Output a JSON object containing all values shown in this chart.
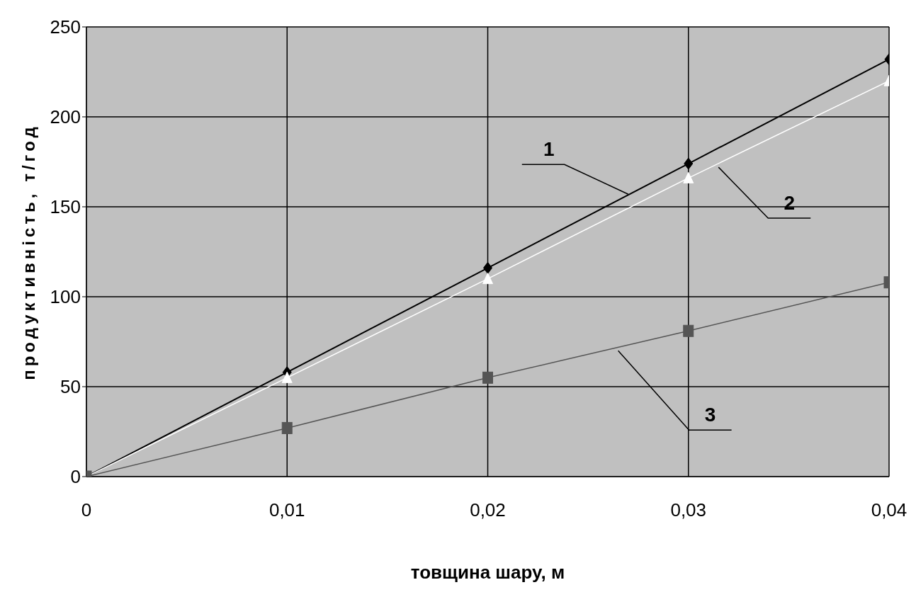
{
  "chart_data": {
    "type": "line",
    "xlabel": "товщина шару, м",
    "ylabel": "продуктивність, т/год",
    "x": [
      0,
      0.01,
      0.02,
      0.03,
      0.04
    ],
    "series": [
      {
        "color": "#000000",
        "marker": "diamond",
        "values": [
          0,
          58,
          116,
          174,
          232
        ]
      },
      {
        "color": "#ffffff",
        "marker": "triangle",
        "values": [
          0,
          55,
          110,
          166,
          220
        ]
      },
      {
        "color": "#555555",
        "marker": "square",
        "values": [
          0,
          27,
          55,
          81,
          108
        ]
      }
    ],
    "xlim": [
      0,
      0.04
    ],
    "xticks": [
      {
        "value": 0,
        "label": "0"
      },
      {
        "value": 0.01,
        "label": "0,01"
      },
      {
        "value": 0.02,
        "label": "0,02"
      },
      {
        "value": 0.03,
        "label": "0,03"
      },
      {
        "value": 0.04,
        "label": "0,04"
      }
    ],
    "ylim": [
      0,
      250
    ],
    "yticks": [
      0,
      50,
      100,
      150,
      200,
      250
    ],
    "grid": true,
    "annotations": [
      {
        "text": "1",
        "x": 0.027,
        "y": 157
      },
      {
        "text": "2",
        "x": 0.0315,
        "y": 172
      },
      {
        "text": "3",
        "x": 0.0265,
        "y": 70
      }
    ]
  }
}
